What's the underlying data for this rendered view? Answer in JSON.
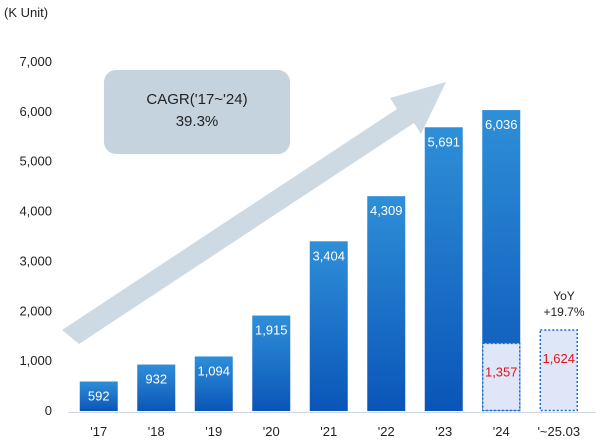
{
  "chart_data": {
    "type": "bar",
    "unit_label": "(K Unit)",
    "categories": [
      "'17",
      "'18",
      "'19",
      "'20",
      "'21",
      "'22",
      "'23",
      "'24",
      "'~25.03"
    ],
    "values": [
      592,
      932,
      1094,
      1915,
      3404,
      4309,
      5691,
      6036,
      null
    ],
    "value_labels": [
      "592",
      "932",
      "1,094",
      "1,915",
      "3,404",
      "4,309",
      "5,691",
      "6,036",
      ""
    ],
    "quarter_values": [
      null,
      null,
      null,
      null,
      null,
      null,
      null,
      1357,
      1624
    ],
    "quarter_labels": [
      "",
      "",
      "",
      "",
      "",
      "",
      "",
      "1,357",
      "1,624"
    ],
    "ylim": [
      0,
      7000
    ],
    "yticks": [
      0,
      1000,
      2000,
      3000,
      4000,
      5000,
      6000,
      7000
    ],
    "ytick_labels": [
      "0",
      "1,000",
      "2,000",
      "3,000",
      "4,000",
      "5,000",
      "6,000",
      "7,000"
    ],
    "annotations": {
      "cagr_line1": "CAGR('17~'24)",
      "cagr_line2": "39.3%",
      "yoy_line1": "YoY",
      "yoy_line2": "+19.7%"
    },
    "colors": {
      "bar_top": "#2f8fd8",
      "bar_bottom": "#0a55b8",
      "quarter_fill": "#dfe6f7",
      "quarter_border": "#1f6fd0",
      "highlight_text": "#e0141e",
      "arrow": "#c5d3de",
      "cagr_box": "#c5d3de"
    },
    "grid": false,
    "legend": "none"
  }
}
